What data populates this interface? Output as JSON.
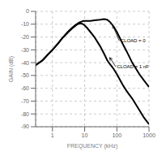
{
  "chart_data": {
    "type": "line",
    "xlabel": "FREQUENCY (kHz)",
    "ylabel": "GAIN (dB)",
    "log": "x",
    "grid": true,
    "xlim": [
      0.3,
      1000
    ],
    "ylim": [
      -90,
      0
    ],
    "xticks": [
      1,
      10,
      100,
      1000
    ],
    "yticks": [
      0,
      -10,
      -20,
      -30,
      -40,
      -50,
      -60,
      -70,
      -80,
      -90
    ],
    "x": [
      0.3,
      0.5,
      0.7,
      1.0,
      1.5,
      2.0,
      3.0,
      4.0,
      5.0,
      6.0,
      7.0,
      8.0,
      9.0,
      10.0,
      12.0,
      15.0,
      20.0,
      30.0,
      40.0,
      50.0,
      60.0,
      70.0,
      80.0,
      100.0,
      150.0,
      200.0,
      300.0,
      500.0,
      700.0,
      1000.0
    ],
    "series": [
      {
        "color": "#000000",
        "values": [
          -42,
          -38,
          -34,
          -30,
          -25,
          -21,
          -16,
          -13,
          -11,
          -9.5,
          -8.5,
          -8,
          -7.5,
          -7.5,
          -7.5,
          -7.5,
          -7,
          -6.5,
          -6,
          -6.5,
          -8,
          -10,
          -12,
          -16,
          -25,
          -31,
          -40,
          -49,
          -54,
          -59
        ]
      },
      {
        "color": "#000000",
        "values": [
          -42,
          -38,
          -34,
          -30,
          -25,
          -21,
          -16.5,
          -13.5,
          -11.5,
          -10,
          -9.5,
          -9.5,
          -10,
          -11,
          -13,
          -16,
          -20,
          -27,
          -33,
          -38,
          -41,
          -43,
          -45,
          -49,
          -57,
          -62,
          -68,
          -77,
          -83,
          -88
        ]
      }
    ],
    "annotations": [
      {
        "text": "CLOAD = 0",
        "xy": [
          75,
          -11
        ],
        "xytext": [
          130,
          -23
        ]
      },
      {
        "text": "CLOAD = 1 nF",
        "xy": [
          60,
          -36
        ],
        "xytext": [
          100,
          -43
        ]
      }
    ]
  }
}
